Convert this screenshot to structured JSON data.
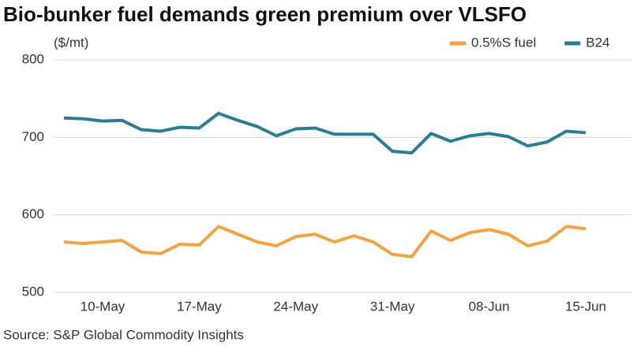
{
  "chart_data": {
    "type": "line",
    "title": "Bio-bunker fuel demands green premium over VLSFO",
    "y_label": "($/mt)",
    "source": "Source: S&P Global Commodity Insights",
    "categories": [
      null,
      null,
      "10-May",
      null,
      null,
      null,
      null,
      "17-May",
      null,
      null,
      null,
      null,
      "24-May",
      null,
      null,
      null,
      null,
      "31-May",
      null,
      null,
      null,
      null,
      "08-Jun",
      null,
      null,
      null,
      null,
      "15-Jun"
    ],
    "series": [
      {
        "name": "0.5%S fuel",
        "color": "#f2a444",
        "values": [
          565,
          563,
          565,
          567,
          552,
          550,
          562,
          561,
          585,
          575,
          565,
          560,
          572,
          575,
          565,
          573,
          565,
          549,
          546,
          579,
          567,
          577,
          581,
          575,
          560,
          566,
          585,
          582
        ]
      },
      {
        "name": "B24",
        "color": "#2b7d91",
        "values": [
          725,
          724,
          721,
          722,
          710,
          708,
          713,
          712,
          731,
          722,
          714,
          702,
          711,
          712,
          704,
          704,
          704,
          682,
          680,
          705,
          695,
          702,
          705,
          701,
          689,
          694,
          708,
          706
        ]
      }
    ],
    "ylim": [
      500,
      800
    ],
    "yticks": [
      500,
      600,
      700,
      800
    ],
    "grid": true,
    "legend": "top-right"
  }
}
